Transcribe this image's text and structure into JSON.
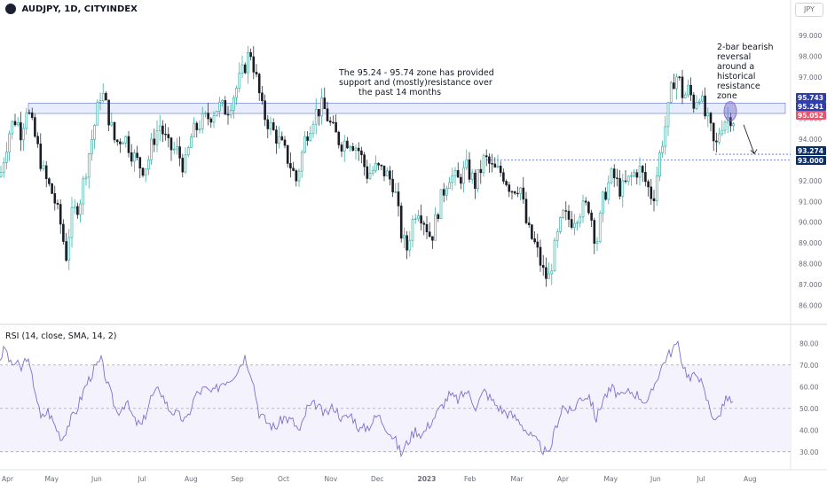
{
  "header": {
    "title": "AUDJPY, 1D, CITYINDEX",
    "currency": "JPY",
    "rsi_label": "RSI (14, close, SMA, 14, 2)"
  },
  "annotations": {
    "zone_note": [
      "The 95.24 - 95.74 zone has provided",
      "support and (mostly)resistance over",
      "the past 14 months"
    ],
    "reversal_note": [
      "2-bar bearish",
      "reversal",
      "around a",
      "historical",
      "resistance",
      "zone"
    ]
  },
  "colors": {
    "up": "#26a69a",
    "down": "#1a1d26",
    "zone_fill": "#e8edfb",
    "zone_line": "#5b6fd6",
    "rsi_line": "#7e6fd0",
    "label_blue": "#2f3ea8",
    "label_navy": "#0d2f67",
    "label_red": "#f0516a",
    "label_purple": "#7a68c7"
  },
  "chart_data": [
    {
      "type": "candlestick",
      "title": "AUDJPY, 1D, CITYINDEX",
      "ylim": [
        85.5,
        99.6
      ],
      "price_ticks": [
        86.0,
        87.0,
        88.0,
        89.0,
        90.0,
        91.0,
        92.0,
        93.0,
        94.0,
        95.0,
        96.0,
        97.0,
        98.0,
        99.0
      ],
      "x_labels": [
        "Apr",
        "May",
        "Jun",
        "Jul",
        "Aug",
        "Sep",
        "Oct",
        "Nov",
        "Dec",
        "2023",
        "Feb",
        "Mar",
        "Apr",
        "May",
        "Jun",
        "Jul",
        "Aug"
      ],
      "zone": {
        "low": 95.241,
        "high": 95.743
      },
      "horizontal_lines": [
        93.274,
        93.0
      ],
      "price_labels": [
        {
          "value": 95.743,
          "text": "95.743",
          "color": "#2f3ea8"
        },
        {
          "value": 95.241,
          "text": "95.241",
          "color": "#2f3ea8"
        },
        {
          "value": 95.052,
          "text": "95.052",
          "color": "#f0516a"
        },
        {
          "value": 93.274,
          "text": "93.274",
          "color": "#0d2f67"
        },
        {
          "value": 93.0,
          "text": "93.000",
          "color": "#0d2f67"
        }
      ],
      "close_path": [
        [
          0,
          92.2
        ],
        [
          6,
          93.5
        ],
        [
          12,
          94.6
        ],
        [
          18,
          95.0
        ],
        [
          24,
          94.3
        ],
        [
          30,
          95.6
        ],
        [
          40,
          94.0
        ],
        [
          50,
          92.2
        ],
        [
          60,
          91.3
        ],
        [
          70,
          89.6
        ],
        [
          74,
          88.2
        ],
        [
          80,
          90.2
        ],
        [
          90,
          91.0
        ],
        [
          100,
          93.3
        ],
        [
          108,
          95.0
        ],
        [
          114,
          96.4
        ],
        [
          120,
          95.5
        ],
        [
          130,
          93.8
        ],
        [
          140,
          94.2
        ],
        [
          150,
          93.2
        ],
        [
          160,
          92.6
        ],
        [
          166,
          92.8
        ],
        [
          172,
          93.9
        ],
        [
          180,
          94.7
        ],
        [
          190,
          93.6
        ],
        [
          200,
          93.4
        ],
        [
          208,
          92.6
        ],
        [
          216,
          94.2
        ],
        [
          226,
          94.8
        ],
        [
          236,
          95.1
        ],
        [
          246,
          95.6
        ],
        [
          256,
          95.4
        ],
        [
          266,
          96.4
        ],
        [
          274,
          97.3
        ],
        [
          282,
          98.3
        ],
        [
          288,
          97.1
        ],
        [
          296,
          95.3
        ],
        [
          306,
          94.5
        ],
        [
          316,
          93.8
        ],
        [
          326,
          92.9
        ],
        [
          334,
          92.0
        ],
        [
          344,
          94.1
        ],
        [
          354,
          95.2
        ],
        [
          364,
          95.6
        ],
        [
          374,
          94.5
        ],
        [
          384,
          93.8
        ],
        [
          394,
          94.0
        ],
        [
          404,
          93.5
        ],
        [
          414,
          92.3
        ],
        [
          424,
          92.6
        ],
        [
          434,
          92.4
        ],
        [
          444,
          91.8
        ],
        [
          452,
          89.5
        ],
        [
          458,
          88.6
        ],
        [
          464,
          89.9
        ],
        [
          470,
          90.8
        ],
        [
          478,
          90.1
        ],
        [
          486,
          89.2
        ],
        [
          496,
          91.0
        ],
        [
          506,
          92.3
        ],
        [
          516,
          92.0
        ],
        [
          526,
          92.6
        ],
        [
          536,
          91.8
        ],
        [
          546,
          93.1
        ],
        [
          556,
          92.5
        ],
        [
          566,
          92.4
        ],
        [
          576,
          91.6
        ],
        [
          586,
          91.8
        ],
        [
          594,
          89.7
        ],
        [
          604,
          88.8
        ],
        [
          612,
          87.6
        ],
        [
          618,
          87.2
        ],
        [
          626,
          88.9
        ],
        [
          634,
          90.3
        ],
        [
          644,
          90.1
        ],
        [
          654,
          90.6
        ],
        [
          664,
          90.8
        ],
        [
          672,
          88.9
        ],
        [
          680,
          91.2
        ],
        [
          690,
          92.3
        ],
        [
          700,
          91.5
        ],
        [
          710,
          92.1
        ],
        [
          720,
          92.6
        ],
        [
          728,
          91.9
        ],
        [
          736,
          91.1
        ],
        [
          744,
          93.4
        ],
        [
          752,
          95.1
        ],
        [
          758,
          96.8
        ],
        [
          764,
          97.1
        ],
        [
          770,
          96.0
        ],
        [
          776,
          96.4
        ],
        [
          782,
          95.7
        ],
        [
          788,
          96.3
        ],
        [
          794,
          95.2
        ],
        [
          800,
          94.6
        ],
        [
          806,
          93.4
        ],
        [
          812,
          94.7
        ],
        [
          818,
          95.0
        ],
        [
          824,
          95.1
        ],
        [
          828,
          94.9
        ]
      ],
      "arrow": {
        "from": [
          838,
          94.7
        ],
        "to": [
          850,
          93.3
        ]
      }
    },
    {
      "type": "line",
      "title": "RSI (14, close, SMA, 14, 2)",
      "ylim": [
        25,
        83
      ],
      "ticks": [
        30.0,
        40.0,
        50.0,
        60.0,
        70.0,
        80.0
      ],
      "bands": [
        30,
        50,
        70
      ],
      "values": [
        [
          0,
          73
        ],
        [
          6,
          78
        ],
        [
          12,
          70
        ],
        [
          18,
          71
        ],
        [
          24,
          68
        ],
        [
          30,
          74
        ],
        [
          40,
          58
        ],
        [
          46,
          45
        ],
        [
          54,
          49
        ],
        [
          62,
          42
        ],
        [
          70,
          36
        ],
        [
          76,
          42
        ],
        [
          86,
          49
        ],
        [
          96,
          60
        ],
        [
          106,
          68
        ],
        [
          114,
          72
        ],
        [
          122,
          60
        ],
        [
          132,
          48
        ],
        [
          142,
          53
        ],
        [
          152,
          44
        ],
        [
          160,
          42
        ],
        [
          170,
          55
        ],
        [
          180,
          59
        ],
        [
          190,
          50
        ],
        [
          200,
          47
        ],
        [
          210,
          44
        ],
        [
          220,
          56
        ],
        [
          230,
          59
        ],
        [
          240,
          57
        ],
        [
          250,
          62
        ],
        [
          260,
          64
        ],
        [
          268,
          68
        ],
        [
          276,
          74
        ],
        [
          284,
          65
        ],
        [
          292,
          48
        ],
        [
          300,
          44
        ],
        [
          310,
          41
        ],
        [
          320,
          46
        ],
        [
          330,
          44
        ],
        [
          338,
          39
        ],
        [
          346,
          50
        ],
        [
          356,
          52
        ],
        [
          366,
          47
        ],
        [
          376,
          51
        ],
        [
          386,
          45
        ],
        [
          396,
          47
        ],
        [
          406,
          40
        ],
        [
          416,
          42
        ],
        [
          426,
          47
        ],
        [
          436,
          41
        ],
        [
          446,
          35
        ],
        [
          452,
          29
        ],
        [
          460,
          35
        ],
        [
          468,
          40
        ],
        [
          476,
          38
        ],
        [
          486,
          44
        ],
        [
          496,
          50
        ],
        [
          506,
          56
        ],
        [
          516,
          54
        ],
        [
          526,
          58
        ],
        [
          536,
          51
        ],
        [
          546,
          58
        ],
        [
          556,
          53
        ],
        [
          566,
          49
        ],
        [
          576,
          47
        ],
        [
          586,
          44
        ],
        [
          596,
          38
        ],
        [
          606,
          34
        ],
        [
          614,
          30
        ],
        [
          618,
          28
        ],
        [
          626,
          41
        ],
        [
          634,
          51
        ],
        [
          644,
          48
        ],
        [
          654,
          55
        ],
        [
          664,
          56
        ],
        [
          672,
          45
        ],
        [
          680,
          55
        ],
        [
          690,
          59
        ],
        [
          700,
          55
        ],
        [
          710,
          58
        ],
        [
          720,
          56
        ],
        [
          730,
          52
        ],
        [
          740,
          64
        ],
        [
          750,
          73
        ],
        [
          758,
          77
        ],
        [
          763,
          80
        ],
        [
          770,
          70
        ],
        [
          778,
          63
        ],
        [
          786,
          67
        ],
        [
          794,
          57
        ],
        [
          802,
          48
        ],
        [
          808,
          44
        ],
        [
          814,
          51
        ],
        [
          820,
          55
        ],
        [
          826,
          52
        ]
      ]
    }
  ]
}
